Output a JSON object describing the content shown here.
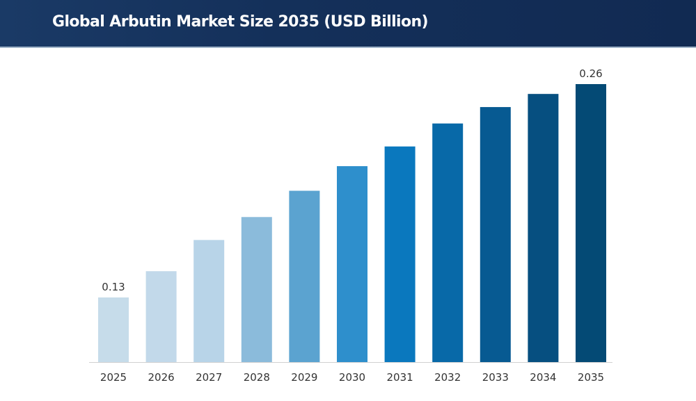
{
  "chart_data": {
    "type": "bar",
    "title": "Global Arbutin Market Size 2035 (USD Billion)",
    "xlabel": "",
    "ylabel": "",
    "categories": [
      "2025",
      "2026",
      "2027",
      "2028",
      "2029",
      "2030",
      "2031",
      "2032",
      "2033",
      "2034",
      "2035"
    ],
    "values": [
      0.13,
      0.146,
      0.165,
      0.179,
      0.195,
      0.21,
      0.222,
      0.236,
      0.246,
      0.254,
      0.26
    ],
    "data_labels": {
      "0": "0.13",
      "10": "0.26"
    },
    "ylim": [
      0.09,
      0.26
    ],
    "grid": false,
    "legend": "none",
    "colors": [
      "#c6dcea",
      "#c2d9ea",
      "#b8d4e8",
      "#8bbbdb",
      "#5ba3d0",
      "#2e8fcc",
      "#0a78be",
      "#0869a8",
      "#075a92",
      "#064f80",
      "#044a75"
    ],
    "header_color": "#14305a"
  }
}
